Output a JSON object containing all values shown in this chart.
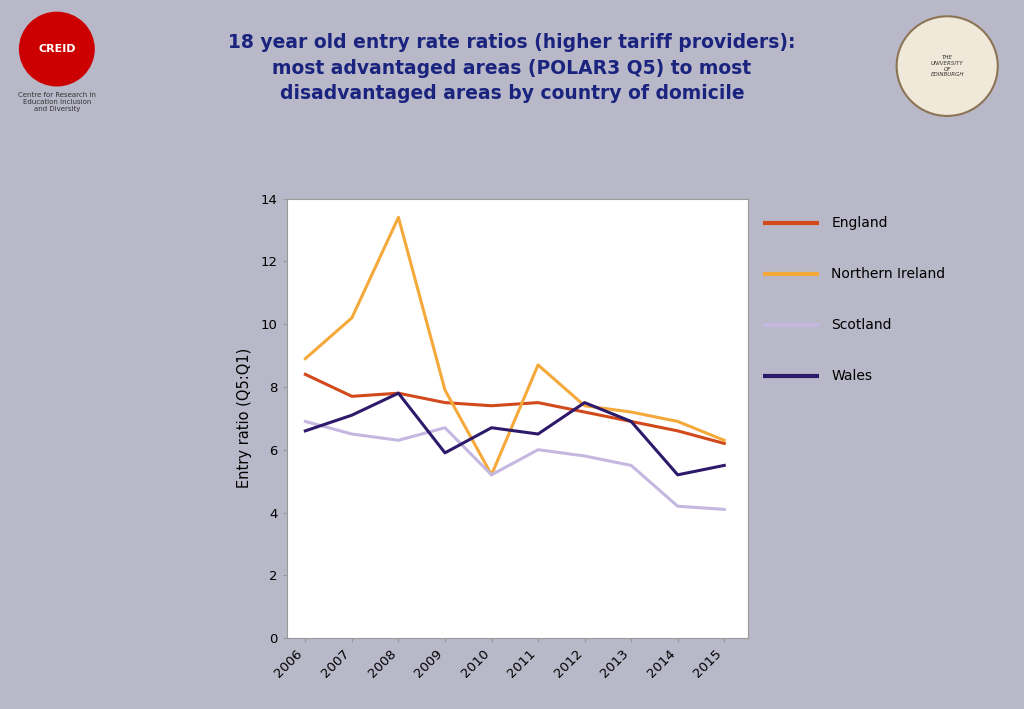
{
  "years": [
    2006,
    2007,
    2008,
    2009,
    2010,
    2011,
    2012,
    2013,
    2014,
    2015
  ],
  "england": [
    8.4,
    7.7,
    7.8,
    7.5,
    7.4,
    7.5,
    7.2,
    6.9,
    6.6,
    6.2
  ],
  "northern_ireland": [
    8.9,
    10.2,
    13.4,
    7.9,
    5.2,
    8.7,
    7.4,
    7.2,
    6.9,
    6.3
  ],
  "scotland": [
    6.9,
    6.5,
    6.3,
    6.7,
    5.2,
    6.0,
    5.8,
    5.5,
    4.2,
    4.1
  ],
  "wales": [
    6.6,
    7.1,
    7.8,
    5.9,
    6.7,
    6.5,
    7.5,
    6.9,
    5.2,
    5.5
  ],
  "england_color": "#d2491b",
  "northern_ireland_color": "#f5a93a",
  "scotland_color": "#c4b8e0",
  "wales_color": "#2e1a6b",
  "ylabel": "Entry ratio (Q5:Q1)",
  "ylim": [
    0,
    14
  ],
  "yticks": [
    0,
    2,
    4,
    6,
    8,
    10,
    12,
    14
  ],
  "background_color": "#ffffff",
  "header_bg": "#f0f0f0",
  "title_line1": "18 year old entry rate ratios (higher tariff providers):",
  "title_line2": "most advantaged areas (POLAR3 Q5) to most",
  "title_line3": "disadvantaged areas by country of domicile",
  "title_color": "#1a237e",
  "slide_bg": "#b8b8c8",
  "border_blue": "#1a237e",
  "border_red": "#cc0000",
  "legend_labels": [
    "England",
    "Northern Ireland",
    "Scotland",
    "Wales"
  ]
}
